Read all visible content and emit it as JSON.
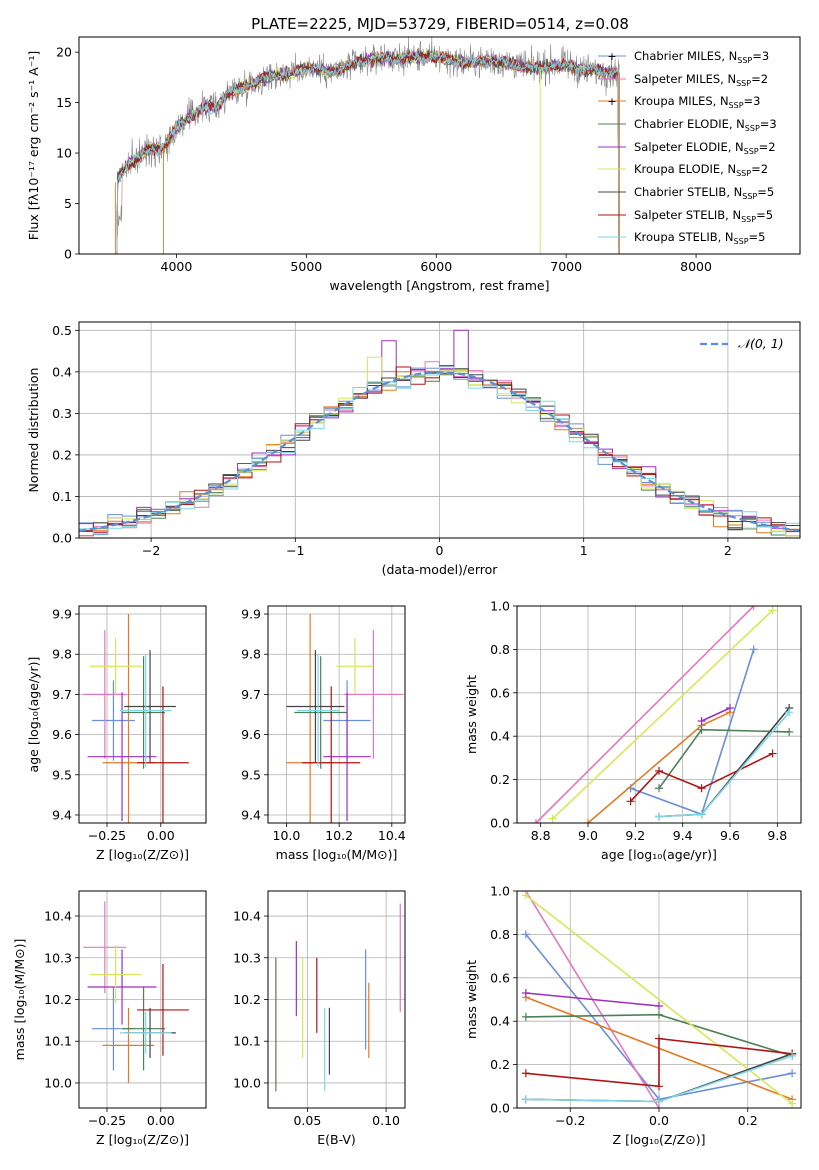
{
  "title": "PLATE=2225, MJD=53729, FIBERID=0514, z=0.08",
  "colors": {
    "Chabrier MILES": "#6a8fd8",
    "Salpeter MILES": "#e377c2",
    "Kroupa MILES": "#e07b27",
    "Chabrier ELODIE": "#4f7f57",
    "Salpeter ELODIE": "#9b30c0",
    "Kroupa ELODIE": "#d4e857",
    "Chabrier STELIB": "#444444",
    "Salpeter STELIB": "#b01515",
    "Kroupa STELIB": "#7fd6e6"
  },
  "chart_data": [
    {
      "type": "line",
      "xlabel": "wavelength [Angstrom, rest frame]",
      "ylabel": "Flux [fλ10⁻¹⁷ erg cm⁻² s⁻¹ A⁻¹]",
      "xlim": [
        3250,
        8800
      ],
      "ylim": [
        0,
        21.5
      ],
      "xticks": [
        4000,
        5000,
        6000,
        7000,
        8000
      ],
      "yticks": [
        0,
        5,
        10,
        15,
        20
      ],
      "legend_position": "top-right",
      "legend": [
        {
          "label": "Chabrier MILES, N_SSP=3",
          "model": "Chabrier MILES"
        },
        {
          "label": "Salpeter MILES, N_SSP=2",
          "model": "Salpeter MILES"
        },
        {
          "label": "Kroupa MILES, N_SSP=3",
          "model": "Kroupa MILES"
        },
        {
          "label": "Chabrier ELODIE, N_SSP=3",
          "model": "Chabrier ELODIE"
        },
        {
          "label": "Salpeter ELODIE, N_SSP=2",
          "model": "Salpeter ELODIE"
        },
        {
          "label": "Kroupa ELODIE, N_SSP=2",
          "model": "Kroupa ELODIE"
        },
        {
          "label": "Chabrier STELIB, N_SSP=5",
          "model": "Chabrier STELIB"
        },
        {
          "label": "Salpeter STELIB, N_SSP=5",
          "model": "Salpeter STELIB"
        },
        {
          "label": "Kroupa STELIB, N_SSP=5",
          "model": "Kroupa STELIB"
        }
      ],
      "continuum": {
        "x": [
          3500,
          3600,
          3700,
          3800,
          3900,
          4000,
          4100,
          4200,
          4300,
          4400,
          4500,
          4600,
          4700,
          4800,
          4900,
          5000,
          5100,
          5200,
          5300,
          5400,
          5500,
          5600,
          5700,
          5800,
          5900,
          6000,
          6100,
          6200,
          6300,
          6400,
          6500,
          6600,
          6700,
          6800,
          6900,
          7000,
          7100,
          7200,
          7300,
          7400
        ],
        "y": [
          6.5,
          8.5,
          9.5,
          10.5,
          10.5,
          12.5,
          13.5,
          14.5,
          14.5,
          15.8,
          16.5,
          17.0,
          17.5,
          17.8,
          18.0,
          18.5,
          18.3,
          18.0,
          18.5,
          19.0,
          19.3,
          19.5,
          19.3,
          19.5,
          19.5,
          19.5,
          19.3,
          19.0,
          19.0,
          19.2,
          19.0,
          18.8,
          18.5,
          18.5,
          18.7,
          18.7,
          18.3,
          18.2,
          18.0,
          18.0
        ]
      }
    },
    {
      "type": "histogram",
      "xlabel": "(data-model)/error",
      "ylabel": "Normed distribution",
      "xlim": [
        -2.5,
        2.5
      ],
      "ylim": [
        0,
        0.52
      ],
      "xticks": [
        -2,
        -1,
        0,
        1,
        2
      ],
      "yticks": [
        0.0,
        0.1,
        0.2,
        0.3,
        0.4,
        0.5
      ],
      "legend_position": "top-right",
      "reference": {
        "label": "𝒩(0, 1)",
        "mean": 0,
        "std": 1
      }
    },
    {
      "type": "scatter",
      "xlabel": "Z [log₁₀(Z/Z⊙)]",
      "ylabel": "age  [log₁₀(age/yr)]",
      "xlim": [
        -0.38,
        0.21
      ],
      "ylim": [
        9.38,
        9.92
      ],
      "xticks": [
        -0.25,
        0.0
      ],
      "yticks": [
        9.4,
        9.5,
        9.6,
        9.7,
        9.8,
        9.9
      ],
      "points": [
        {
          "model": "Chabrier MILES",
          "x": -0.22,
          "y": 9.635,
          "xerr": 0.1,
          "yerr": 0.1
        },
        {
          "model": "Salpeter MILES",
          "x": -0.26,
          "y": 9.7,
          "xerr": 0.1,
          "yerr": 0.16
        },
        {
          "model": "Kroupa MILES",
          "x": -0.15,
          "y": 9.53,
          "xerr": 0.12,
          "yerr": 0.37
        },
        {
          "model": "Chabrier ELODIE",
          "x": -0.08,
          "y": 9.655,
          "xerr": 0.1,
          "yerr": 0.14
        },
        {
          "model": "Salpeter ELODIE",
          "x": -0.18,
          "y": 9.545,
          "xerr": 0.16,
          "yerr": 0.16
        },
        {
          "model": "Kroupa ELODIE",
          "x": -0.21,
          "y": 9.77,
          "xerr": 0.12,
          "yerr": 0.07
        },
        {
          "model": "Chabrier STELIB",
          "x": -0.05,
          "y": 9.67,
          "xerr": 0.12,
          "yerr": 0.14
        },
        {
          "model": "Salpeter STELIB",
          "x": 0.01,
          "y": 9.53,
          "xerr": 0.12,
          "yerr": 0.19
        },
        {
          "model": "Kroupa STELIB",
          "x": -0.07,
          "y": 9.66,
          "xerr": 0.12,
          "yerr": 0.14
        }
      ]
    },
    {
      "type": "scatter",
      "xlabel": "mass [log₁₀(M/M⊙)]",
      "ylabel": "",
      "xlim": [
        9.93,
        10.45
      ],
      "ylim": [
        9.38,
        9.92
      ],
      "xticks": [
        10.0,
        10.2,
        10.4
      ],
      "yticks": [
        9.4,
        9.5,
        9.6,
        9.7,
        9.8,
        9.9
      ],
      "points": [
        {
          "model": "Chabrier MILES",
          "x": 10.23,
          "y": 9.635,
          "xerr": 0.09,
          "yerr": 0.1
        },
        {
          "model": "Salpeter MILES",
          "x": 10.33,
          "y": 9.7,
          "xerr": 0.11,
          "yerr": 0.16
        },
        {
          "model": "Kroupa MILES",
          "x": 10.09,
          "y": 9.53,
          "xerr": 0.09,
          "yerr": 0.37
        },
        {
          "model": "Chabrier ELODIE",
          "x": 10.13,
          "y": 9.655,
          "xerr": 0.1,
          "yerr": 0.14
        },
        {
          "model": "Salpeter ELODIE",
          "x": 10.23,
          "y": 9.545,
          "xerr": 0.09,
          "yerr": 0.16
        },
        {
          "model": "Kroupa ELODIE",
          "x": 10.26,
          "y": 9.77,
          "xerr": 0.07,
          "yerr": 0.07
        },
        {
          "model": "Chabrier STELIB",
          "x": 10.11,
          "y": 9.67,
          "xerr": 0.11,
          "yerr": 0.14
        },
        {
          "model": "Salpeter STELIB",
          "x": 10.17,
          "y": 9.53,
          "xerr": 0.11,
          "yerr": 0.19
        },
        {
          "model": "Kroupa STELIB",
          "x": 10.12,
          "y": 9.66,
          "xerr": 0.08,
          "yerr": 0.14
        }
      ]
    },
    {
      "type": "line",
      "xlabel": "age  [log₁₀(age/yr)]",
      "ylabel": "mass weight",
      "xlim": [
        8.7,
        9.9
      ],
      "ylim": [
        0,
        1
      ],
      "xticks": [
        8.8,
        9.0,
        9.2,
        9.4,
        9.6,
        9.8
      ],
      "yticks": [
        0.0,
        0.2,
        0.4,
        0.6,
        0.8,
        1.0
      ],
      "series": [
        {
          "model": "Chabrier MILES",
          "x": [
            9.18,
            9.48,
            9.7
          ],
          "y": [
            0.16,
            0.04,
            0.8
          ]
        },
        {
          "model": "Salpeter MILES",
          "x": [
            8.78,
            9.7
          ],
          "y": [
            0.0,
            1.0
          ]
        },
        {
          "model": "Kroupa MILES",
          "x": [
            9.0,
            9.48,
            9.6
          ],
          "y": [
            0.0,
            0.45,
            0.51
          ]
        },
        {
          "model": "Chabrier ELODIE",
          "x": [
            9.3,
            9.48,
            9.85
          ],
          "y": [
            0.16,
            0.43,
            0.42
          ]
        },
        {
          "model": "Salpeter ELODIE",
          "x": [
            9.48,
            9.6
          ],
          "y": [
            0.47,
            0.53
          ]
        },
        {
          "model": "Kroupa ELODIE",
          "x": [
            8.85,
            9.78
          ],
          "y": [
            0.02,
            0.98
          ]
        },
        {
          "model": "Chabrier STELIB",
          "x": [
            9.3,
            9.48,
            9.85
          ],
          "y": [
            0.03,
            0.04,
            0.53
          ]
        },
        {
          "model": "Salpeter STELIB",
          "x": [
            9.18,
            9.3,
            9.48,
            9.78
          ],
          "y": [
            0.1,
            0.24,
            0.16,
            0.32
          ]
        },
        {
          "model": "Kroupa STELIB",
          "x": [
            9.3,
            9.48,
            9.85
          ],
          "y": [
            0.03,
            0.04,
            0.51
          ]
        }
      ]
    },
    {
      "type": "scatter",
      "xlabel": "Z [log₁₀(Z/Z⊙)]",
      "ylabel": "mass [log₁₀(M/M⊙)]",
      "xlim": [
        -0.38,
        0.21
      ],
      "ylim": [
        9.94,
        10.46
      ],
      "xticks": [
        -0.25,
        0.0
      ],
      "yticks": [
        10.0,
        10.1,
        10.2,
        10.3,
        10.4
      ],
      "points": [
        {
          "model": "Chabrier MILES",
          "x": -0.22,
          "y": 10.13,
          "xerr": 0.1,
          "yerr": 0.1
        },
        {
          "model": "Salpeter MILES",
          "x": -0.26,
          "y": 10.325,
          "xerr": 0.1,
          "yerr": 0.11
        },
        {
          "model": "Kroupa MILES",
          "x": -0.15,
          "y": 10.09,
          "xerr": 0.12,
          "yerr": 0.09
        },
        {
          "model": "Chabrier ELODIE",
          "x": -0.08,
          "y": 10.13,
          "xerr": 0.1,
          "yerr": 0.1
        },
        {
          "model": "Salpeter ELODIE",
          "x": -0.18,
          "y": 10.23,
          "xerr": 0.16,
          "yerr": 0.09
        },
        {
          "model": "Kroupa ELODIE",
          "x": -0.21,
          "y": 10.26,
          "xerr": 0.12,
          "yerr": 0.07
        },
        {
          "model": "Chabrier STELIB",
          "x": -0.05,
          "y": 10.12,
          "xerr": 0.12,
          "yerr": 0.06
        },
        {
          "model": "Salpeter STELIB",
          "x": 0.01,
          "y": 10.175,
          "xerr": 0.12,
          "yerr": 0.11
        },
        {
          "model": "Kroupa STELIB",
          "x": -0.07,
          "y": 10.12,
          "xerr": 0.12,
          "yerr": 0.05
        }
      ]
    },
    {
      "type": "scatter",
      "xlabel": "E(B-V)",
      "ylabel": "",
      "xlim": [
        0.025,
        0.112
      ],
      "ylim": [
        9.94,
        10.46
      ],
      "xticks": [
        0.05,
        0.1
      ],
      "yticks": [
        10.0,
        10.1,
        10.2,
        10.3,
        10.4
      ],
      "points": [
        {
          "model": "Chabrier ELODIE",
          "x": 0.03,
          "y": 10.14,
          "yerr": 0.16
        },
        {
          "model": "Salpeter ELODIE",
          "x": 0.043,
          "y": 10.25,
          "yerr": 0.09
        },
        {
          "model": "Kroupa ELODIE",
          "x": 0.047,
          "y": 10.18,
          "yerr": 0.12
        },
        {
          "model": "Salpeter STELIB",
          "x": 0.056,
          "y": 10.21,
          "yerr": 0.09
        },
        {
          "model": "Kroupa STELIB",
          "x": 0.061,
          "y": 10.08,
          "yerr": 0.1
        },
        {
          "model": "Chabrier STELIB",
          "x": 0.064,
          "y": 10.1,
          "yerr": 0.08
        },
        {
          "model": "Chabrier MILES",
          "x": 0.087,
          "y": 10.2,
          "yerr": 0.12
        },
        {
          "model": "Kroupa MILES",
          "x": 0.089,
          "y": 10.15,
          "yerr": 0.09
        },
        {
          "model": "Salpeter MILES",
          "x": 0.109,
          "y": 10.3,
          "yerr": 0.13
        }
      ]
    },
    {
      "type": "line",
      "xlabel": "Z [log₁₀(Z/Z⊙)]",
      "ylabel": "mass weight",
      "xlim": [
        -0.32,
        0.32
      ],
      "ylim": [
        0,
        1
      ],
      "xticks": [
        -0.2,
        0.0,
        0.2
      ],
      "yticks": [
        0.0,
        0.2,
        0.4,
        0.6,
        0.8,
        1.0
      ],
      "series": [
        {
          "model": "Chabrier MILES",
          "x": [
            -0.3,
            0.0,
            0.3
          ],
          "y": [
            0.8,
            0.04,
            0.16
          ]
        },
        {
          "model": "Salpeter MILES",
          "x": [
            -0.3,
            0.0
          ],
          "y": [
            1.0,
            0.0
          ]
        },
        {
          "model": "Kroupa MILES",
          "x": [
            -0.3,
            0.3
          ],
          "y": [
            0.51,
            0.04
          ]
        },
        {
          "model": "Chabrier ELODIE",
          "x": [
            -0.3,
            0.0,
            0.3
          ],
          "y": [
            0.42,
            0.43,
            0.24
          ]
        },
        {
          "model": "Salpeter ELODIE",
          "x": [
            -0.3,
            0.0
          ],
          "y": [
            0.53,
            0.47
          ]
        },
        {
          "model": "Kroupa ELODIE",
          "x": [
            -0.3,
            0.3
          ],
          "y": [
            0.98,
            0.02
          ]
        },
        {
          "model": "Chabrier STELIB",
          "x": [
            -0.3,
            0.0,
            0.3
          ],
          "y": [
            0.04,
            0.03,
            0.25
          ]
        },
        {
          "model": "Salpeter STELIB",
          "x": [
            -0.3,
            0.0,
            0.0,
            0.3
          ],
          "y": [
            0.16,
            0.1,
            0.32,
            0.25
          ]
        },
        {
          "model": "Kroupa STELIB",
          "x": [
            -0.3,
            0.0,
            0.3
          ],
          "y": [
            0.04,
            0.03,
            0.24
          ]
        }
      ]
    }
  ]
}
